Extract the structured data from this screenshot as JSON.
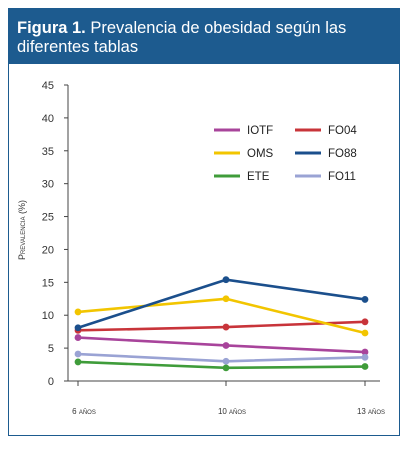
{
  "figure": {
    "number": "Figura 1.",
    "title": "Prevalencia de obesidad según las diferentes tablas"
  },
  "chart_data": {
    "type": "line",
    "title": "Figura 1. Prevalencia de obesidad según las diferentes tablas",
    "xlabel": "",
    "ylabel": "Prevalencia (%)",
    "categories": [
      "6 años",
      "10 años",
      "13 años"
    ],
    "ylim": [
      0,
      45
    ],
    "yticks": [
      0,
      5,
      10,
      15,
      20,
      25,
      30,
      35,
      40,
      45
    ],
    "grid": false,
    "legend_placement": "top-right",
    "series": [
      {
        "name": "IOTF",
        "color": "#a8449b",
        "values": [
          6.6,
          5.4,
          4.4
        ]
      },
      {
        "name": "FO04",
        "color": "#c8343a",
        "values": [
          7.7,
          8.2,
          9.0
        ]
      },
      {
        "name": "OMS",
        "color": "#f2c500",
        "values": [
          10.5,
          12.5,
          7.3
        ]
      },
      {
        "name": "FO88",
        "color": "#1b4f8c",
        "values": [
          8.1,
          15.4,
          12.4
        ]
      },
      {
        "name": "ETE",
        "color": "#3f9c3a",
        "values": [
          2.9,
          2.0,
          2.2
        ]
      },
      {
        "name": "FO11",
        "color": "#9aa3d4",
        "values": [
          4.1,
          3.0,
          3.6
        ]
      }
    ]
  }
}
